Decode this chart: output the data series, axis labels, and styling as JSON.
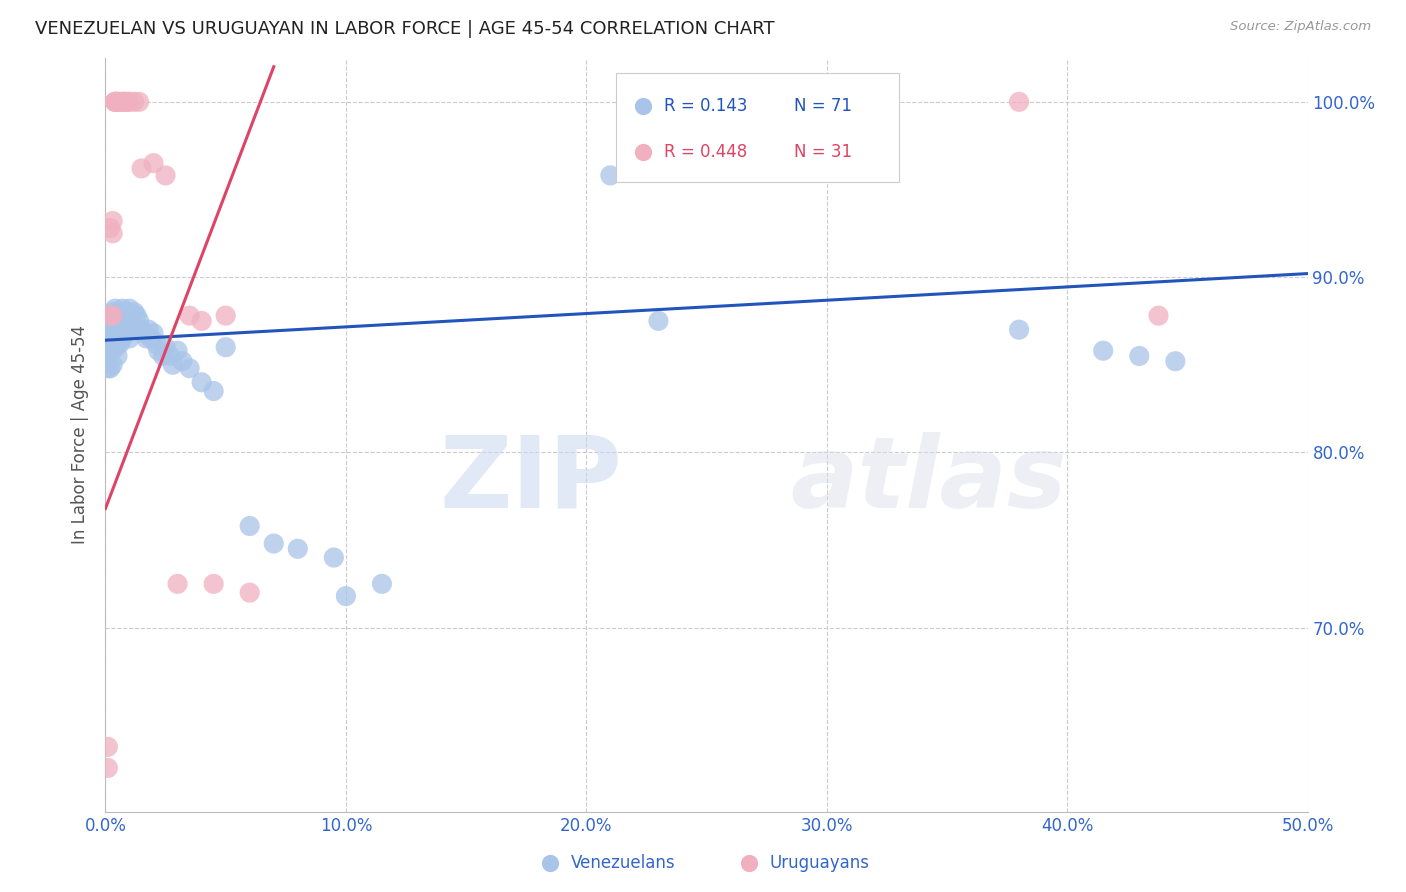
{
  "title": "VENEZUELAN VS URUGUAYAN IN LABOR FORCE | AGE 45-54 CORRELATION CHART",
  "source": "Source: ZipAtlas.com",
  "ylabel": "In Labor Force | Age 45-54",
  "xmin": 0.0,
  "xmax": 0.5,
  "ymin": 0.595,
  "ymax": 1.025,
  "xtick_vals": [
    0.0,
    0.1,
    0.2,
    0.3,
    0.4,
    0.5
  ],
  "ytick_vals": [
    0.7,
    0.8,
    0.9,
    1.0
  ],
  "ytick_labels": [
    "70.0%",
    "80.0%",
    "90.0%",
    "100.0%"
  ],
  "legend_blue_r": "R = 0.143",
  "legend_blue_n": "N = 71",
  "legend_pink_r": "R = 0.448",
  "legend_pink_n": "N = 31",
  "blue_scatter_color": "#a8c4e8",
  "pink_scatter_color": "#f0b0c0",
  "blue_line_color": "#2255bb",
  "pink_line_color": "#dd4466",
  "tick_label_color": "#3366cc",
  "grid_color": "#cccccc",
  "watermark_color": "#dce8f5",
  "venezuelans_x": [
    0.001,
    0.001,
    0.001,
    0.001,
    0.002,
    0.002,
    0.002,
    0.002,
    0.003,
    0.003,
    0.003,
    0.003,
    0.003,
    0.004,
    0.004,
    0.004,
    0.004,
    0.005,
    0.005,
    0.005,
    0.005,
    0.006,
    0.006,
    0.006,
    0.007,
    0.007,
    0.007,
    0.008,
    0.008,
    0.009,
    0.009,
    0.01,
    0.01,
    0.01,
    0.011,
    0.011,
    0.012,
    0.012,
    0.013,
    0.013,
    0.014,
    0.015,
    0.016,
    0.017,
    0.018,
    0.019,
    0.02,
    0.021,
    0.022,
    0.024,
    0.025,
    0.027,
    0.028,
    0.03,
    0.032,
    0.035,
    0.04,
    0.045,
    0.05,
    0.06,
    0.07,
    0.08,
    0.095,
    0.1,
    0.115,
    0.21,
    0.23,
    0.38,
    0.415,
    0.43,
    0.445
  ],
  "venezuelans_y": [
    0.87,
    0.862,
    0.855,
    0.848,
    0.875,
    0.865,
    0.858,
    0.848,
    0.88,
    0.872,
    0.865,
    0.858,
    0.85,
    0.882,
    0.875,
    0.868,
    0.86,
    0.878,
    0.87,
    0.862,
    0.855,
    0.88,
    0.872,
    0.862,
    0.882,
    0.875,
    0.865,
    0.878,
    0.868,
    0.88,
    0.87,
    0.882,
    0.875,
    0.865,
    0.878,
    0.87,
    0.88,
    0.872,
    0.878,
    0.87,
    0.875,
    0.87,
    0.868,
    0.865,
    0.87,
    0.865,
    0.868,
    0.862,
    0.858,
    0.855,
    0.86,
    0.855,
    0.85,
    0.858,
    0.852,
    0.848,
    0.84,
    0.835,
    0.86,
    0.758,
    0.748,
    0.745,
    0.74,
    0.718,
    0.725,
    0.958,
    0.875,
    0.87,
    0.858,
    0.855,
    0.852
  ],
  "uruguayans_x": [
    0.001,
    0.001,
    0.002,
    0.002,
    0.003,
    0.003,
    0.003,
    0.004,
    0.004,
    0.004,
    0.005,
    0.005,
    0.006,
    0.007,
    0.008,
    0.008,
    0.009,
    0.01,
    0.012,
    0.014,
    0.015,
    0.02,
    0.025,
    0.03,
    0.035,
    0.04,
    0.045,
    0.05,
    0.06,
    0.38,
    0.438
  ],
  "uruguayans_y": [
    0.632,
    0.62,
    0.878,
    0.928,
    0.932,
    0.925,
    0.878,
    1.0,
    1.0,
    1.0,
    1.0,
    1.0,
    1.0,
    1.0,
    1.0,
    1.0,
    1.0,
    1.0,
    1.0,
    1.0,
    0.962,
    0.965,
    0.958,
    0.725,
    0.878,
    0.875,
    0.725,
    0.878,
    0.72,
    1.0,
    0.878
  ],
  "blue_trend_x0": 0.0,
  "blue_trend_x1": 0.5,
  "blue_trend_y0": 0.864,
  "blue_trend_y1": 0.902,
  "pink_trend_x0": 0.0,
  "pink_trend_x1": 0.07,
  "pink_trend_y0": 0.768,
  "pink_trend_y1": 1.02
}
